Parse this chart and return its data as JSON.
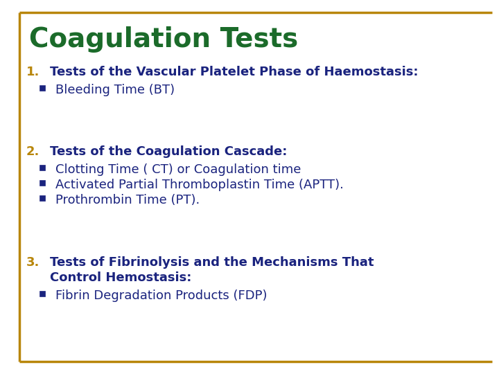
{
  "title": "Coagulation Tests",
  "title_color": "#1B6B2A",
  "title_fontsize": 28,
  "background_color": "#FFFFFF",
  "border_color": "#B8860B",
  "heading_color": "#1A237E",
  "bullet_color": "#1A237E",
  "number_color": "#B8860B",
  "heading_fontsize": 13,
  "bullet_fontsize": 13,
  "sections": [
    {
      "number": "1.",
      "heading": "Tests of the Vascular Platelet Phase of Haemostasis:",
      "bullets": [
        "Bleeding Time (BT)"
      ]
    },
    {
      "number": "2.",
      "heading": "Tests of the Coagulation Cascade:",
      "bullets": [
        "Clotting Time ( CT) or Coagulation time",
        "Activated Partial Thromboplastin Time (APTT).",
        "Prothrombin Time (PT)."
      ]
    },
    {
      "number": "3.",
      "heading": "Tests of Fibrinolysis and the Mechanisms That\nControl Hemostasis:",
      "bullets": [
        "Fibrin Degradation Products (FDP)"
      ]
    }
  ]
}
